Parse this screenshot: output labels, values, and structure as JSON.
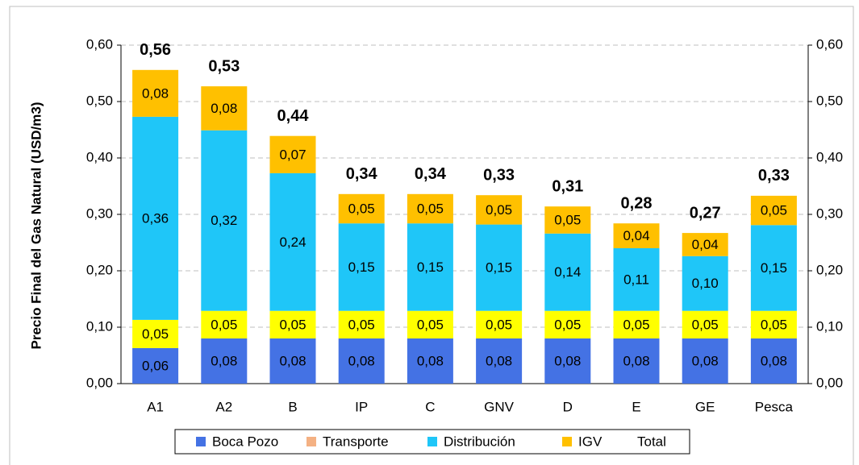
{
  "chart_data": {
    "type": "stacked_bar",
    "y_label": "Precio Final del Gas Natural (USD/m3)",
    "categories": [
      "A1",
      "A2",
      "B",
      "IP",
      "C",
      "GNV",
      "D",
      "E",
      "GE",
      "Pesca"
    ],
    "series": [
      {
        "name": "Boca Pozo",
        "color": "#4472e4",
        "values": [
          0.063,
          0.08,
          0.08,
          0.08,
          0.08,
          0.08,
          0.08,
          0.08,
          0.08,
          0.08
        ],
        "value_labels": [
          "0,06",
          "0,08",
          "0,08",
          "0,08",
          "0,08",
          "0,08",
          "0,08",
          "0,08",
          "0,08",
          "0,08"
        ]
      },
      {
        "name": "Transporte",
        "color": "#ffff00",
        "legend_color": "#f4b183",
        "values": [
          0.05,
          0.049,
          0.049,
          0.049,
          0.049,
          0.049,
          0.049,
          0.049,
          0.049,
          0.049
        ],
        "value_labels": [
          "0,05",
          "0,05",
          "0,05",
          "0,05",
          "0,05",
          "0,05",
          "0,05",
          "0,05",
          "0,05",
          "0,05"
        ]
      },
      {
        "name": "Distribución",
        "color": "#1fc6f8",
        "values": [
          0.36,
          0.32,
          0.244,
          0.155,
          0.155,
          0.153,
          0.137,
          0.111,
          0.097,
          0.152
        ],
        "value_labels": [
          "0,36",
          "0,32",
          "0,24",
          "0,15",
          "0,15",
          "0,15",
          "0,14",
          "0,11",
          "0,10",
          "0,15"
        ]
      },
      {
        "name": "IGV",
        "color": "#ffc000",
        "values": [
          0.083,
          0.078,
          0.066,
          0.052,
          0.052,
          0.052,
          0.048,
          0.044,
          0.041,
          0.052
        ],
        "value_labels": [
          "0,08",
          "0,08",
          "0,07",
          "0,05",
          "0,05",
          "0,05",
          "0,05",
          "0,04",
          "0,04",
          "0,05"
        ]
      },
      {
        "name": "Total",
        "values": [
          0.556,
          0.527,
          0.439,
          0.336,
          0.336,
          0.334,
          0.314,
          0.284,
          0.267,
          0.333
        ],
        "value_labels": [
          "0,56",
          "0,53",
          "0,44",
          "0,34",
          "0,34",
          "0,33",
          "0,31",
          "0,28",
          "0,27",
          "0,33"
        ]
      }
    ],
    "ylim": [
      0,
      0.6
    ],
    "yticks": [
      {
        "value": 0,
        "label": "0,00"
      },
      {
        "value": 0.1,
        "label": "0,10"
      },
      {
        "value": 0.2,
        "label": "0,20"
      },
      {
        "value": 0.3,
        "label": "0,30"
      },
      {
        "value": 0.4,
        "label": "0,40"
      },
      {
        "value": 0.5,
        "label": "0,50"
      },
      {
        "value": 0.6,
        "label": "0,60"
      }
    ],
    "y2lim": [
      0,
      0.6
    ],
    "y2ticks": [
      {
        "value": 0,
        "label": "0,00"
      },
      {
        "value": 0.1,
        "label": "0,10"
      },
      {
        "value": 0.2,
        "label": "0,20"
      },
      {
        "value": 0.3,
        "label": "0,30"
      },
      {
        "value": 0.4,
        "label": "0,40"
      },
      {
        "value": 0.5,
        "label": "0,50"
      },
      {
        "value": 0.6,
        "label": "0,60"
      }
    ],
    "grid": true,
    "legend": "bottom"
  }
}
